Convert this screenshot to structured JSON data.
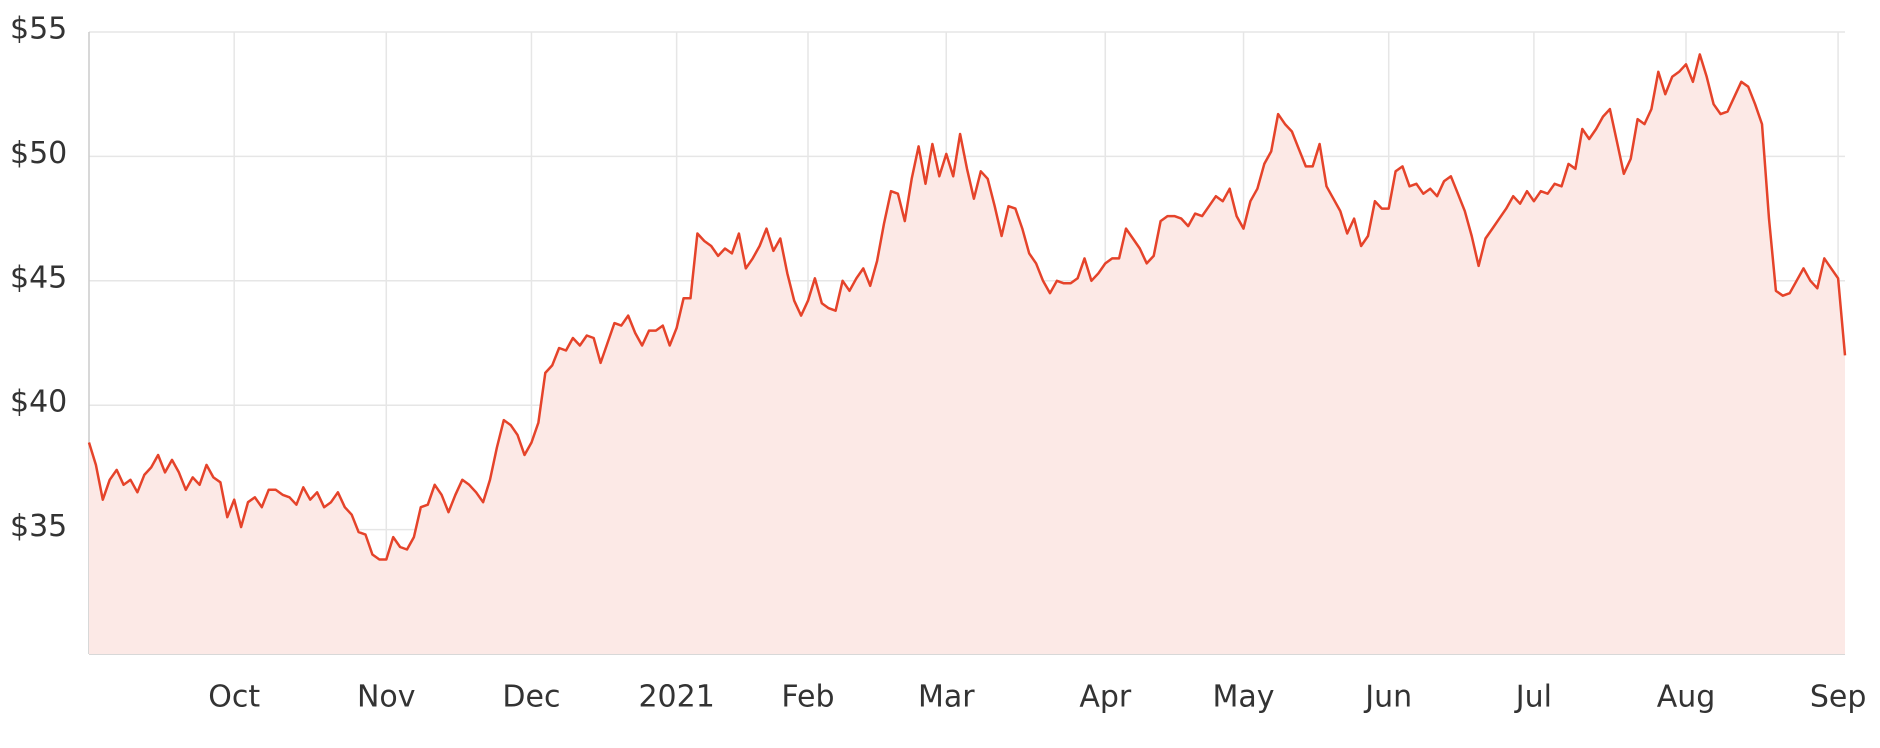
{
  "chart_data": {
    "type": "area",
    "color": "#e5432a",
    "fill": "#fce9e6",
    "grid": true,
    "values": [
      38.5,
      37.6,
      36.2,
      37.0,
      37.4,
      36.8,
      37.0,
      36.5,
      37.2,
      37.5,
      38.0,
      37.3,
      37.8,
      37.3,
      36.6,
      37.1,
      36.8,
      37.6,
      37.1,
      36.9,
      35.5,
      36.2,
      35.1,
      36.1,
      36.3,
      35.9,
      36.6,
      36.6,
      36.4,
      36.3,
      36.0,
      36.7,
      36.2,
      36.5,
      35.9,
      36.1,
      36.5,
      35.9,
      35.6,
      34.9,
      34.8,
      34.0,
      33.8,
      33.8,
      34.7,
      34.3,
      34.2,
      34.7,
      35.9,
      36.0,
      36.8,
      36.4,
      35.7,
      36.4,
      37.0,
      36.8,
      36.5,
      36.1,
      37.0,
      38.3,
      39.4,
      39.2,
      38.8,
      38.0,
      38.5,
      39.3,
      41.3,
      41.6,
      42.3,
      42.2,
      42.7,
      42.4,
      42.8,
      42.7,
      41.7,
      42.5,
      43.3,
      43.2,
      43.6,
      42.9,
      42.4,
      43.0,
      43.0,
      43.2,
      42.4,
      43.1,
      44.3,
      44.3,
      46.9,
      46.6,
      46.4,
      46.0,
      46.3,
      46.1,
      46.9,
      45.5,
      45.9,
      46.4,
      47.1,
      46.2,
      46.7,
      45.3,
      44.2,
      43.6,
      44.2,
      45.1,
      44.1,
      43.9,
      43.8,
      45.0,
      44.6,
      45.1,
      45.5,
      44.8,
      45.8,
      47.3,
      48.6,
      48.5,
      47.4,
      49.1,
      50.4,
      48.9,
      50.5,
      49.2,
      50.1,
      49.2,
      50.9,
      49.5,
      48.3,
      49.4,
      49.1,
      48.0,
      46.8,
      48.0,
      47.9,
      47.1,
      46.1,
      45.7,
      45.0,
      44.5,
      45.0,
      44.9,
      44.9,
      45.1,
      45.9,
      45.0,
      45.3,
      45.7,
      45.9,
      45.9,
      47.1,
      46.7,
      46.3,
      45.7,
      46.0,
      47.4,
      47.6,
      47.6,
      47.5,
      47.2,
      47.7,
      47.6,
      48.0,
      48.4,
      48.2,
      48.7,
      47.6,
      47.1,
      48.2,
      48.7,
      49.7,
      50.2,
      51.7,
      51.3,
      51.0,
      50.3,
      49.6,
      49.6,
      50.5,
      48.8,
      48.3,
      47.8,
      46.9,
      47.5,
      46.4,
      46.8,
      48.2,
      47.9,
      47.9,
      49.4,
      49.6,
      48.8,
      48.9,
      48.5,
      48.7,
      48.4,
      49.0,
      49.2,
      48.5,
      47.8,
      46.8,
      45.6,
      46.7,
      47.1,
      47.5,
      47.9,
      48.4,
      48.1,
      48.6,
      48.2,
      48.6,
      48.5,
      48.9,
      48.8,
      49.7,
      49.5,
      51.1,
      50.7,
      51.1,
      51.6,
      51.9,
      50.6,
      49.3,
      49.9,
      51.5,
      51.3,
      51.9,
      53.4,
      52.5,
      53.2,
      53.4,
      53.7,
      53.0,
      54.1,
      53.2,
      52.1,
      51.7,
      51.8,
      52.4,
      53.0,
      52.8,
      52.1,
      51.3,
      47.5,
      44.6,
      44.4,
      44.5,
      45.0,
      45.5,
      45.0,
      44.7,
      45.9,
      45.5,
      45.1,
      42.0
    ],
    "xlim": [
      0,
      254
    ],
    "xticks": [
      {
        "value": 21,
        "label": "Oct"
      },
      {
        "value": 43,
        "label": "Nov"
      },
      {
        "value": 64,
        "label": "Dec"
      },
      {
        "value": 85,
        "label": "2021"
      },
      {
        "value": 104,
        "label": "Feb"
      },
      {
        "value": 124,
        "label": "Mar"
      },
      {
        "value": 147,
        "label": "Apr"
      },
      {
        "value": 167,
        "label": "May"
      },
      {
        "value": 188,
        "label": "Jun"
      },
      {
        "value": 209,
        "label": "Jul"
      },
      {
        "value": 231,
        "label": "Aug"
      },
      {
        "value": 253,
        "label": "Sep"
      }
    ],
    "ylim": [
      30,
      55
    ],
    "yticks": [
      {
        "value": 35,
        "label": "$35"
      },
      {
        "value": 40,
        "label": "$40"
      },
      {
        "value": 45,
        "label": "$45"
      },
      {
        "value": 50,
        "label": "$50"
      },
      {
        "value": 55,
        "label": "$55"
      }
    ]
  }
}
